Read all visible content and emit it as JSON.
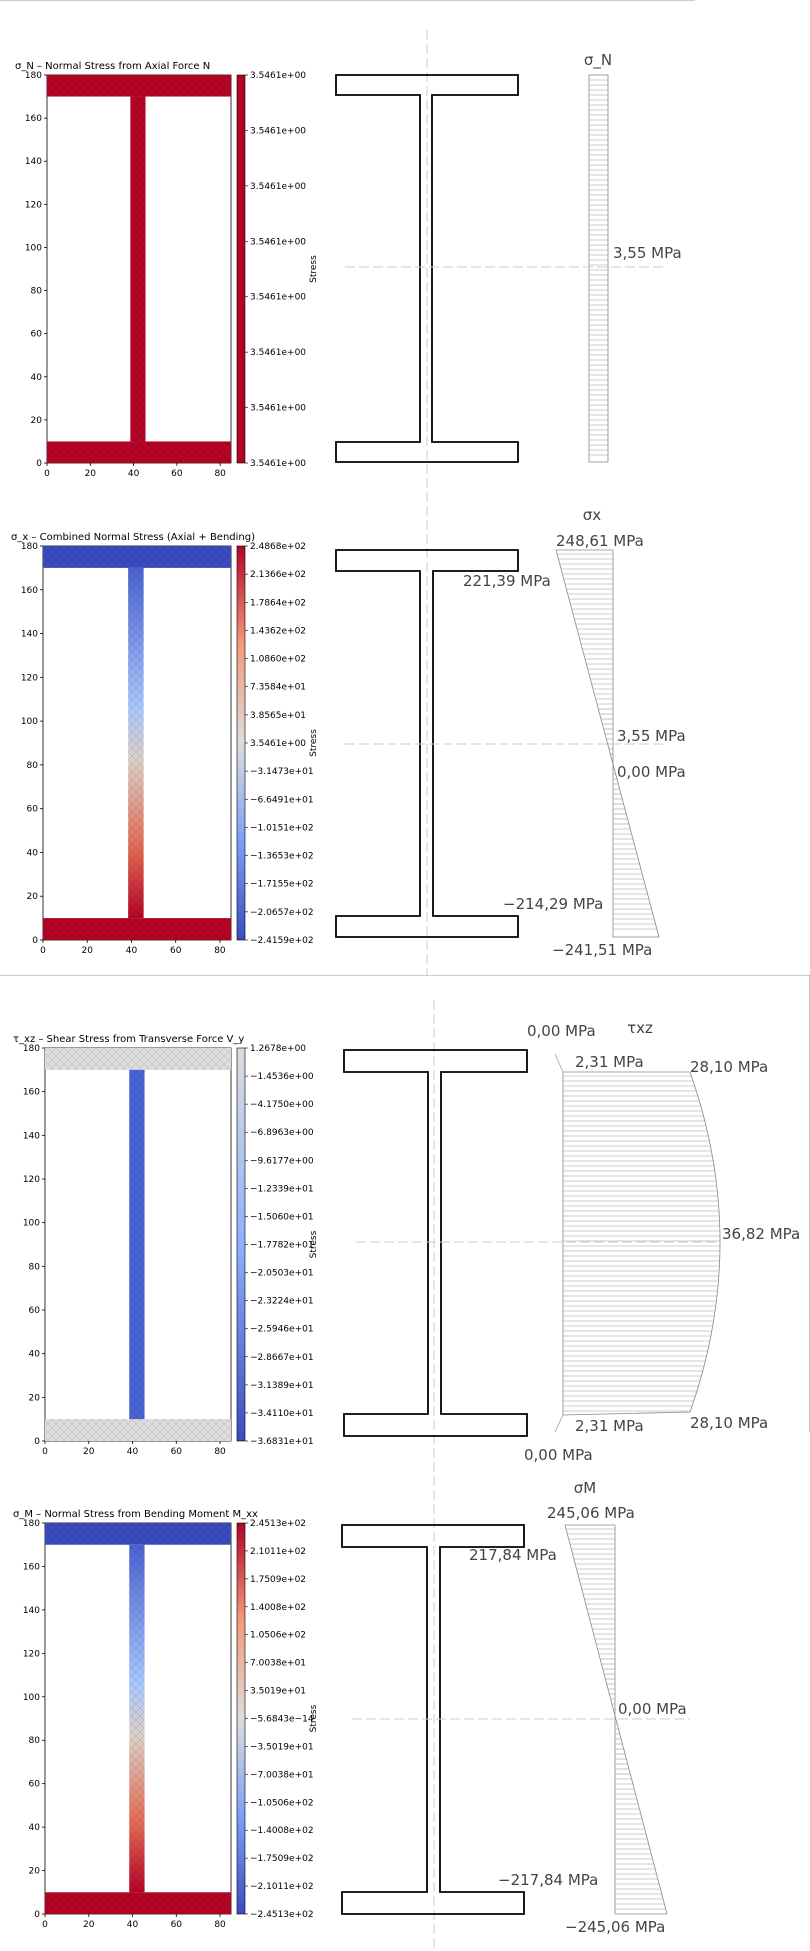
{
  "panels": [
    {
      "title": "σ_N – Normal Stress from Axial Force N",
      "colorbar_label": "Stress",
      "colorbar_ticks": [
        "3.5461e+00",
        "3.5461e+00",
        "3.5461e+00",
        "3.5461e+00",
        "3.5461e+00",
        "3.5461e+00",
        "3.5461e+00",
        "3.5461e+00"
      ],
      "diagram_title": "σ_N",
      "diagram_labels": {
        "mid": "3,55  MPa"
      }
    },
    {
      "title": "σ_x – Combined Normal Stress (Axial + Bending)",
      "colorbar_label": "Stress",
      "colorbar_ticks": [
        "2.4868e+02",
        "2.1366e+02",
        "1.7864e+02",
        "1.4362e+02",
        "1.0860e+02",
        "7.3584e+01",
        "3.8565e+01",
        "3.5461e+00",
        "−3.1473e+01",
        "−6.6491e+01",
        "−1.0151e+02",
        "−1.3653e+02",
        "−1.7155e+02",
        "−2.0657e+02",
        "−2.4159e+02"
      ],
      "diagram_title": "σx",
      "diagram_labels": {
        "top": "248,61  MPa",
        "top_inner": "221,39  MPa",
        "mid": "3,55  MPa",
        "zero": "0,00  MPa",
        "bot_inner": "−214,29  MPa",
        "bot": "−241,51  MPa"
      }
    },
    {
      "title": "τ_xz – Shear Stress from Transverse Force V_y",
      "colorbar_label": "Stress",
      "colorbar_ticks": [
        "1.2678e+00",
        "−1.4536e+00",
        "−4.1750e+00",
        "−6.8963e+00",
        "−9.6177e+00",
        "−1.2339e+01",
        "−1.5060e+01",
        "−1.7782e+01",
        "−2.0503e+01",
        "−2.3224e+01",
        "−2.5946e+01",
        "−2.8667e+01",
        "−3.1389e+01",
        "−3.4110e+01",
        "−3.6831e+01"
      ],
      "diagram_title": "τxz",
      "diagram_labels": {
        "top_zero": "0,00  MPa",
        "top_flange": "2,31  MPa",
        "top_web": "28,10  MPa",
        "max": "36,82  MPa",
        "bot_flange": "2,31  MPa",
        "bot_web": "28,10  MPa",
        "bot_zero": "0,00  MPa"
      }
    },
    {
      "title": "σ_M – Normal Stress from Bending Moment M_xx",
      "colorbar_label": "Stress",
      "colorbar_ticks": [
        "2.4513e+02",
        "2.1011e+02",
        "1.7509e+02",
        "1.4008e+02",
        "1.0506e+02",
        "7.0038e+01",
        "3.5019e+01",
        "−5.6843e−14",
        "−3.5019e+01",
        "−7.0038e+01",
        "−1.0506e+02",
        "−1.4008e+02",
        "−1.7509e+02",
        "−2.1011e+02",
        "−2.4513e+02"
      ],
      "diagram_title": "σM",
      "diagram_labels": {
        "top": "245,06  MPa",
        "top_inner": "217,84  MPa",
        "zero": "0,00  MPa",
        "bot_inner": "−217,84  MPa",
        "bot": "−245,06  MPa"
      }
    }
  ],
  "axes": {
    "y_ticks": [
      "180",
      "160",
      "140",
      "120",
      "100",
      "80",
      "60",
      "40",
      "20",
      "0"
    ],
    "x_ticks": [
      "0",
      "20",
      "40",
      "60",
      "80"
    ]
  },
  "colors": {
    "red": "#b40426",
    "blue": "#3b4cc0",
    "grey": "#dddddd",
    "line": "#555555"
  }
}
